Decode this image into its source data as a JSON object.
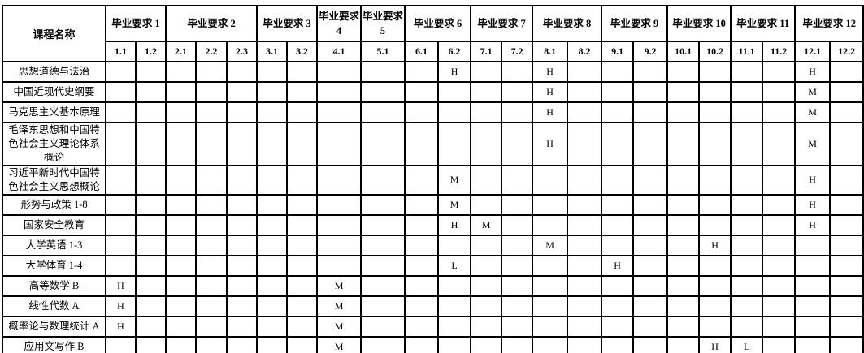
{
  "colors": {
    "border": "#000000",
    "background": "#ffffff",
    "text": "#000000"
  },
  "table": {
    "course_header": "课程名称",
    "groups": [
      {
        "label": "毕业要求 1",
        "subs": [
          "1.1",
          "1.2"
        ]
      },
      {
        "label": "毕业要求 2",
        "subs": [
          "2.1",
          "2.2",
          "2.3"
        ]
      },
      {
        "label": "毕业要求 3",
        "subs": [
          "3.1",
          "3.2"
        ]
      },
      {
        "label": "毕业要求4",
        "subs": [
          "4.1"
        ]
      },
      {
        "label": "毕业要求5",
        "subs": [
          "5.1"
        ]
      },
      {
        "label": "毕业要求 6",
        "subs": [
          "6.1",
          "6.2"
        ]
      },
      {
        "label": "毕业要求 7",
        "subs": [
          "7.1",
          "7.2"
        ]
      },
      {
        "label": "毕业要求 8",
        "subs": [
          "8.1",
          "8.2"
        ]
      },
      {
        "label": "毕业要求 9",
        "subs": [
          "9.1",
          "9.2"
        ]
      },
      {
        "label": "毕业要求 10",
        "subs": [
          "10.1",
          "10.2"
        ]
      },
      {
        "label": "毕业要求 11",
        "subs": [
          "11.1",
          "11.2"
        ]
      },
      {
        "label": "毕业要求 12",
        "subs": [
          "12.1",
          "12.2"
        ]
      }
    ],
    "rows": [
      {
        "course": "思想道德与法治",
        "marks": {
          "6.2": "H",
          "8.1": "H",
          "12.1": "H"
        }
      },
      {
        "course": "中国近现代史纲要",
        "marks": {
          "8.1": "H",
          "12.1": "M"
        }
      },
      {
        "course": "马克思主义基本原理",
        "marks": {
          "8.1": "H",
          "12.1": "M"
        }
      },
      {
        "course": "毛泽东思想和中国特色社会主义理论体系概论",
        "marks": {
          "8.1": "H",
          "12.1": "M"
        }
      },
      {
        "course": "习近平新时代中国特色社会主义思想概论",
        "marks": {
          "6.2": "M",
          "12.1": "H"
        }
      },
      {
        "course": "形势与政策 1-8",
        "marks": {
          "6.2": "M",
          "12.1": "H"
        }
      },
      {
        "course": "国家安全教育",
        "marks": {
          "6.2": "H",
          "7.1": "M",
          "12.1": "H"
        }
      },
      {
        "course": "大学英语 1-3",
        "marks": {
          "8.1": "M",
          "10.2": "H"
        }
      },
      {
        "course": "大学体育 1-4",
        "marks": {
          "6.2": "L",
          "9.1": "H"
        }
      },
      {
        "course": "高等数学 B",
        "marks": {
          "1.1": "H",
          "4.1": "M"
        }
      },
      {
        "course": "线性代数 A",
        "marks": {
          "1.1": "H",
          "4.1": "M"
        }
      },
      {
        "course": "概率论与数理统计 A",
        "marks": {
          "1.1": "H",
          "4.1": "M"
        }
      },
      {
        "course": "应用文写作 B",
        "marks": {
          "4.1": "M",
          "10.2": "H",
          "11.1": "L"
        }
      }
    ],
    "mark_legend_values": [
      "H",
      "M",
      "L"
    ]
  }
}
